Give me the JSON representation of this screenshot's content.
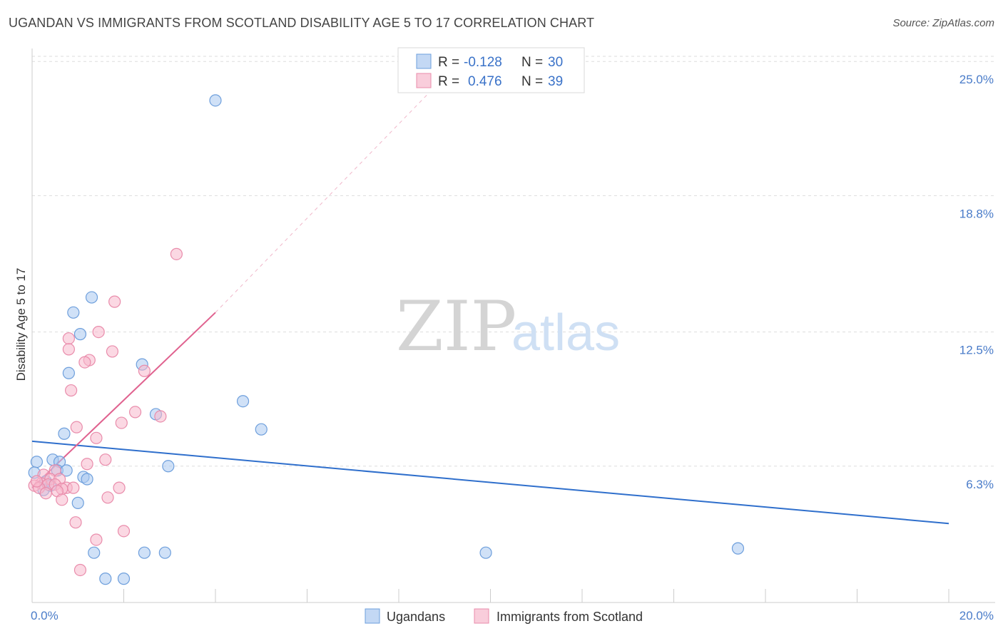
{
  "header": {
    "title": "UGANDAN VS IMMIGRANTS FROM SCOTLAND DISABILITY AGE 5 TO 17 CORRELATION CHART",
    "source": "Source: ZipAtlas.com"
  },
  "watermark": {
    "zip": "ZIP",
    "atlas": "atlas"
  },
  "legend_top": {
    "rows": [
      {
        "r_label": "R =",
        "r_value": "-0.128",
        "n_label": "N =",
        "n_value": "30",
        "color": "#a9c8f0"
      },
      {
        "r_label": "R =",
        "r_value": "0.476",
        "n_label": "N =",
        "n_value": "39",
        "color": "#f7b8cc"
      }
    ]
  },
  "legend_bottom": {
    "items": [
      {
        "label": "Ugandans",
        "color": "#a9c8f0"
      },
      {
        "label": "Immigrants from Scotland",
        "color": "#f7b8cc"
      }
    ]
  },
  "colors": {
    "blue_fill": "#a9c8f0",
    "blue_stroke": "#6e9fdc",
    "blue_line": "#2f6fcc",
    "pink_fill": "#f7b8cc",
    "pink_stroke": "#e98cab",
    "pink_line": "#e0628f",
    "tick_text": "#4a7cc9"
  },
  "chart_data": {
    "type": "scatter",
    "title": "UGANDAN VS IMMIGRANTS FROM SCOTLAND DISABILITY AGE 5 TO 17 CORRELATION CHART",
    "xlabel": "",
    "ylabel": "Disability Age 5 to 17",
    "xlim": [
      0,
      20
    ],
    "ylim": [
      0,
      25.6
    ],
    "x_tick_labels": [
      {
        "value": 0,
        "label": "0.0%"
      },
      {
        "value": 20,
        "label": "20.0%"
      }
    ],
    "y_tick_labels": [
      {
        "value": 6.3,
        "label": "6.3%"
      },
      {
        "value": 12.5,
        "label": "12.5%"
      },
      {
        "value": 18.8,
        "label": "18.8%"
      },
      {
        "value": 25.0,
        "label": "25.0%"
      }
    ],
    "series": [
      {
        "name": "Ugandans",
        "r": -0.128,
        "n": 30,
        "points": [
          [
            4.0,
            23.2
          ],
          [
            1.3,
            14.1
          ],
          [
            0.9,
            13.4
          ],
          [
            1.05,
            12.4
          ],
          [
            0.8,
            10.6
          ],
          [
            2.4,
            11.0
          ],
          [
            4.6,
            9.3
          ],
          [
            5.0,
            8.0
          ],
          [
            2.7,
            8.7
          ],
          [
            0.7,
            7.8
          ],
          [
            0.1,
            6.5
          ],
          [
            0.45,
            6.6
          ],
          [
            0.6,
            6.5
          ],
          [
            0.55,
            6.1
          ],
          [
            0.75,
            6.1
          ],
          [
            2.97,
            6.3
          ],
          [
            1.12,
            5.8
          ],
          [
            1.2,
            5.7
          ],
          [
            0.05,
            6.0
          ],
          [
            0.3,
            5.6
          ],
          [
            0.25,
            5.2
          ],
          [
            1.0,
            4.6
          ],
          [
            1.35,
            2.3
          ],
          [
            2.45,
            2.3
          ],
          [
            2.9,
            2.3
          ],
          [
            9.9,
            2.3
          ],
          [
            15.4,
            2.5
          ],
          [
            1.6,
            1.1
          ],
          [
            2.0,
            1.1
          ],
          [
            0.4,
            5.4
          ]
        ],
        "trend": {
          "x0": 0,
          "y0": 7.45,
          "x1": 20,
          "y1": 3.65
        }
      },
      {
        "name": "Immigrants from Scotland",
        "r": 0.476,
        "n": 39,
        "points": [
          [
            3.15,
            16.1
          ],
          [
            1.8,
            13.9
          ],
          [
            1.45,
            12.5
          ],
          [
            0.8,
            12.2
          ],
          [
            0.8,
            11.7
          ],
          [
            1.75,
            11.6
          ],
          [
            1.25,
            11.2
          ],
          [
            1.15,
            11.1
          ],
          [
            2.45,
            10.7
          ],
          [
            0.85,
            9.8
          ],
          [
            2.25,
            8.8
          ],
          [
            2.8,
            8.6
          ],
          [
            1.95,
            8.3
          ],
          [
            0.97,
            8.1
          ],
          [
            1.4,
            7.6
          ],
          [
            1.6,
            6.6
          ],
          [
            1.2,
            6.4
          ],
          [
            0.5,
            6.1
          ],
          [
            0.25,
            5.9
          ],
          [
            0.4,
            5.7
          ],
          [
            0.6,
            5.7
          ],
          [
            0.2,
            5.5
          ],
          [
            0.35,
            5.45
          ],
          [
            0.5,
            5.45
          ],
          [
            0.05,
            5.4
          ],
          [
            0.15,
            5.3
          ],
          [
            0.75,
            5.3
          ],
          [
            0.9,
            5.3
          ],
          [
            0.65,
            5.25
          ],
          [
            1.9,
            5.3
          ],
          [
            0.55,
            5.15
          ],
          [
            0.3,
            5.05
          ],
          [
            1.65,
            4.85
          ],
          [
            0.65,
            4.75
          ],
          [
            0.95,
            3.7
          ],
          [
            2.0,
            3.3
          ],
          [
            1.4,
            2.9
          ],
          [
            1.05,
            1.5
          ],
          [
            0.1,
            5.6
          ]
        ],
        "trend": {
          "x0": 0,
          "y0": 5.3,
          "x1": 4.0,
          "y1": 13.4
        },
        "trend_extension": {
          "x0": 4.0,
          "y0": 13.4,
          "x1": 9.6,
          "y1": 25.6
        }
      }
    ],
    "grid": true
  }
}
